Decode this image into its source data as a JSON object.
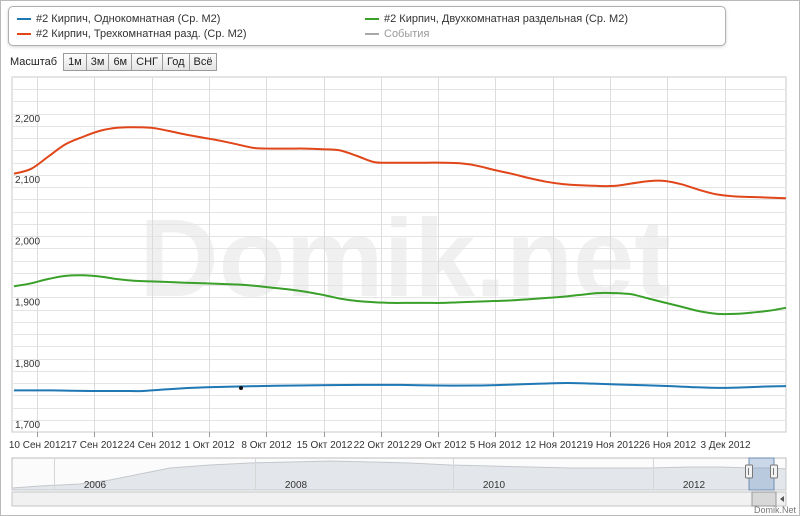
{
  "legend": {
    "items": [
      {
        "label": "#2 Кирпич, Однокомнатная (Ср. М2)",
        "color": "#1f77b4"
      },
      {
        "label": "#2 Кирпич, Двухкомнатная раздельная (Ср. М2)",
        "color": "#3aa02a"
      },
      {
        "label": "#2 Кирпич, Трехкомнатная разд. (Ср. М2)",
        "color": "#e0461a"
      },
      {
        "label": "События",
        "color": "#a8a8a8"
      }
    ]
  },
  "zoom": {
    "label": "Масштаб",
    "buttons": [
      "1м",
      "3м",
      "6м",
      "СНГ",
      "Год",
      "Всё"
    ]
  },
  "watermark": "Domik.net",
  "credit": "Domik.Net",
  "chart_data": {
    "type": "line",
    "x_tick_labels": [
      "10 Сен 2012",
      "17 Сен 2012",
      "24 Сен 2012",
      "1 Окт 2012",
      "8 Окт 2012",
      "15 Окт 2012",
      "22 Окт 2012",
      "29 Окт 2012",
      "5 Ноя 2012",
      "12 Ноя 2012",
      "19 Ноя 2012",
      "26 Ноя 2012",
      "3 Дек 2012"
    ],
    "y_tick_labels": [
      "1,700",
      "1,800",
      "1,900",
      "2,000",
      "2,100",
      "2,200"
    ],
    "ylim": [
      1700,
      2280
    ],
    "grid": true,
    "legend_position": "top",
    "series": [
      {
        "name": "#2 Кирпич, Трехкомнатная разд. (Ср. М2)",
        "color": "#e0461a",
        "points": [
          [
            0,
            2122
          ],
          [
            1,
            2130
          ],
          [
            2,
            2150
          ],
          [
            3,
            2170
          ],
          [
            4,
            2182
          ],
          [
            5,
            2192
          ],
          [
            6,
            2197
          ],
          [
            7,
            2198
          ],
          [
            8,
            2197
          ],
          [
            9,
            2192
          ],
          [
            10,
            2186
          ],
          [
            11,
            2181
          ],
          [
            12,
            2176
          ],
          [
            13,
            2170
          ],
          [
            14,
            2164
          ],
          [
            15,
            2163
          ],
          [
            16,
            2163
          ],
          [
            17,
            2163
          ],
          [
            18,
            2162
          ],
          [
            19,
            2160
          ],
          [
            20,
            2151
          ],
          [
            21,
            2141
          ],
          [
            22,
            2140
          ],
          [
            23,
            2140
          ],
          [
            24,
            2140
          ],
          [
            25,
            2140
          ],
          [
            26,
            2139
          ],
          [
            27,
            2135
          ],
          [
            28,
            2128
          ],
          [
            29,
            2122
          ],
          [
            30,
            2115
          ],
          [
            31,
            2109
          ],
          [
            32,
            2105
          ],
          [
            33,
            2103
          ],
          [
            34,
            2102
          ],
          [
            35,
            2102
          ],
          [
            36,
            2106
          ],
          [
            37,
            2110
          ],
          [
            38,
            2110
          ],
          [
            39,
            2104
          ],
          [
            40,
            2095
          ],
          [
            41,
            2088
          ],
          [
            42,
            2085
          ],
          [
            43,
            2084
          ],
          [
            44,
            2083
          ],
          [
            45,
            2082
          ]
        ]
      },
      {
        "name": "#2 Кирпич, Двухкомнатная раздельная (Ср. М2)",
        "color": "#3aa02a",
        "points": [
          [
            0,
            1938
          ],
          [
            1,
            1943
          ],
          [
            2,
            1950
          ],
          [
            3,
            1955
          ],
          [
            4,
            1956
          ],
          [
            5,
            1954
          ],
          [
            6,
            1950
          ],
          [
            7,
            1947
          ],
          [
            8,
            1946
          ],
          [
            9,
            1945
          ],
          [
            10,
            1944
          ],
          [
            11,
            1943
          ],
          [
            12,
            1942
          ],
          [
            13,
            1941
          ],
          [
            14,
            1939
          ],
          [
            15,
            1936
          ],
          [
            16,
            1933
          ],
          [
            17,
            1929
          ],
          [
            18,
            1924
          ],
          [
            19,
            1918
          ],
          [
            20,
            1914
          ],
          [
            21,
            1912
          ],
          [
            22,
            1911
          ],
          [
            23,
            1911
          ],
          [
            24,
            1911
          ],
          [
            25,
            1911
          ],
          [
            26,
            1912
          ],
          [
            27,
            1913
          ],
          [
            28,
            1914
          ],
          [
            29,
            1915
          ],
          [
            30,
            1917
          ],
          [
            31,
            1919
          ],
          [
            32,
            1921
          ],
          [
            33,
            1924
          ],
          [
            34,
            1927
          ],
          [
            35,
            1927
          ],
          [
            36,
            1925
          ],
          [
            37,
            1918
          ],
          [
            38,
            1911
          ],
          [
            39,
            1904
          ],
          [
            40,
            1897
          ],
          [
            41,
            1893
          ],
          [
            42,
            1893
          ],
          [
            43,
            1895
          ],
          [
            44,
            1898
          ],
          [
            45,
            1903
          ]
        ]
      },
      {
        "name": "#2 Кирпич, Однокомнатная (Ср. М2)",
        "color": "#1f77b4",
        "points": [
          [
            0,
            1768
          ],
          [
            3,
            1768
          ],
          [
            6,
            1767
          ],
          [
            9,
            1767
          ],
          [
            10,
            1767
          ],
          [
            12,
            1770
          ],
          [
            15,
            1773
          ],
          [
            19,
            1775
          ],
          [
            22,
            1776
          ],
          [
            27,
            1777
          ],
          [
            30,
            1777
          ],
          [
            33,
            1776
          ],
          [
            36,
            1776
          ],
          [
            38,
            1777
          ],
          [
            41,
            1779
          ],
          [
            43,
            1780
          ],
          [
            45,
            1779
          ],
          [
            48,
            1777
          ],
          [
            51,
            1775
          ],
          [
            53,
            1773
          ],
          [
            55,
            1772
          ],
          [
            57,
            1773
          ],
          [
            58,
            1774
          ],
          [
            60,
            1775
          ]
        ]
      }
    ],
    "navigator": {
      "tick_labels": [
        "2006",
        "2008",
        "2010",
        "2012"
      ]
    }
  }
}
